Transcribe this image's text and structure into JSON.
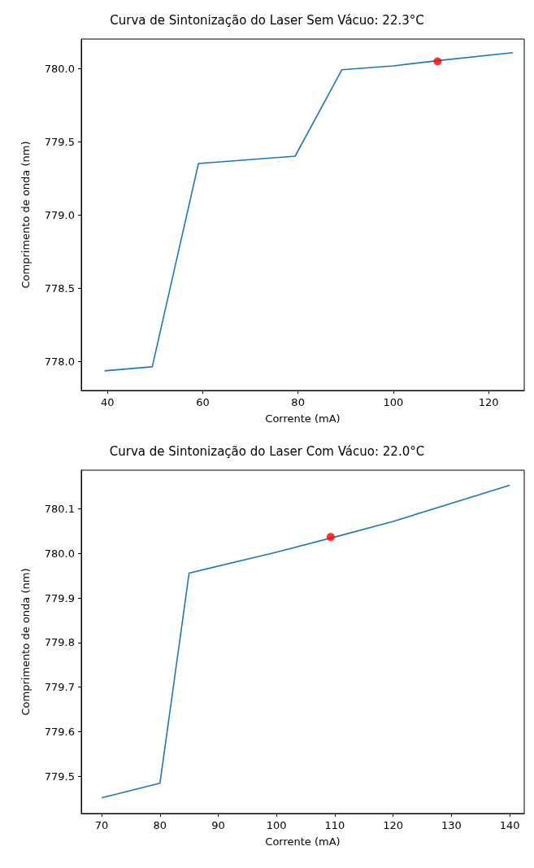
{
  "chart_data": [
    {
      "type": "line",
      "title": "Curva de Sintonização do Laser Sem Vácuo: 22.3°C",
      "xlabel": "Corrente (mA)",
      "ylabel": "Comprimento de onda (nm)",
      "series": [
        {
          "color": "#1f77b4",
          "marker": "none",
          "x": [
            39.4,
            49.4,
            59.1,
            79.4,
            89.2,
            100,
            110,
            125.1
          ],
          "values": [
            777.934,
            777.962,
            779.35,
            779.4,
            779.99,
            780.017,
            780.055,
            780.107
          ]
        },
        {
          "type": "scatter",
          "color": "#ff0000",
          "marker": "circle",
          "x": [
            109.3
          ],
          "values": [
            780.047
          ]
        }
      ],
      "xlim": [
        34.5,
        127.5
      ],
      "xticks": [
        40,
        60,
        80,
        100,
        120
      ],
      "ylim": [
        777.8,
        780.2
      ],
      "yticks": [
        {
          "value": 778,
          "label": "778.0"
        },
        {
          "value": 778.5,
          "label": "778.5"
        },
        {
          "value": 779,
          "label": "779.0"
        },
        {
          "value": 779.5,
          "label": "779.5"
        },
        {
          "value": 780,
          "label": "780.0"
        }
      ]
    },
    {
      "type": "line",
      "title": "Curva de Sintonização do Laser Com Vácuo: 22.0°C",
      "xlabel": "Corrente (mA)",
      "ylabel": "Comprimento de onda (nm)",
      "series": [
        {
          "color": "#1f77b4",
          "marker": "none",
          "x": [
            70,
            80,
            85,
            100,
            110,
            120,
            140
          ],
          "values": [
            779.451,
            779.484,
            779.956,
            780.003,
            780.037,
            780.072,
            780.153
          ]
        },
        {
          "type": "scatter",
          "color": "#ff0000",
          "marker": "circle",
          "x": [
            109.3
          ],
          "values": [
            780.037
          ]
        }
      ],
      "xlim": [
        66.5,
        142.5
      ],
      "xticks": [
        70,
        80,
        90,
        100,
        110,
        120,
        130,
        140
      ],
      "ylim": [
        779.416,
        780.187
      ],
      "yticks": [
        {
          "value": 779.5,
          "label": "779.5"
        },
        {
          "value": 779.6,
          "label": "779.6"
        },
        {
          "value": 779.7,
          "label": "779.7"
        },
        {
          "value": 779.8,
          "label": "779.8"
        },
        {
          "value": 779.9,
          "label": "779.9"
        },
        {
          "value": 780,
          "label": "780.0"
        },
        {
          "value": 780.1,
          "label": "780.1"
        }
      ]
    }
  ]
}
